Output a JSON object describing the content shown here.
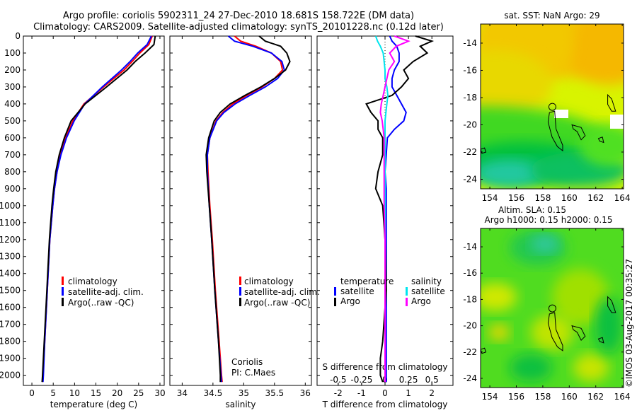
{
  "title_line1": "Argo profile: coriolis 5902311_24 27-Dec-2010 18.681S 158.722E (DM data)",
  "title_line2": "Climatology: CARS2009. Satellite-adjusted climatology: synTS_20101228.nc (0.12d later)",
  "copyright": "©IMOS 03-Aug-2017 00:35:27",
  "colors": {
    "climatology": "#ff0000",
    "satellite": "#0000ff",
    "argo": "#000000",
    "sal_satellite": "#00e5ee",
    "sal_argo": "#ff00ff"
  },
  "chart_data": [
    {
      "type": "line",
      "id": "temperature",
      "xlabel": "temperature (deg C)",
      "xlim": [
        -2,
        31
      ],
      "xticks": [
        0,
        5,
        10,
        15,
        20,
        25,
        30
      ],
      "ylim": [
        0,
        2060
      ],
      "yticks": [
        0,
        100,
        200,
        300,
        400,
        500,
        600,
        700,
        800,
        900,
        1000,
        1100,
        1200,
        1300,
        1400,
        1500,
        1600,
        1700,
        1800,
        1900,
        2000
      ],
      "legend": [
        "climatology",
        "satellite-adj. clim.",
        "Argo(..raw -QC)"
      ],
      "depth": [
        0,
        50,
        100,
        150,
        200,
        300,
        400,
        500,
        600,
        700,
        800,
        900,
        1000,
        1200,
        1400,
        1600,
        1800,
        2000,
        2040
      ],
      "series": [
        {
          "name": "climatology",
          "values": [
            28.2,
            27.4,
            25.3,
            23.5,
            21.6,
            16.8,
            12.2,
            9.6,
            7.9,
            6.7,
            5.9,
            5.3,
            4.9,
            4.2,
            3.8,
            3.4,
            3.0,
            2.6,
            2.5
          ]
        },
        {
          "name": "satellite-adj. clim.",
          "values": [
            28.0,
            27.0,
            24.8,
            23.0,
            21.0,
            16.5,
            12.4,
            9.9,
            8.1,
            6.8,
            5.9,
            5.3,
            4.9,
            4.2,
            3.8,
            3.4,
            3.0,
            2.7,
            2.6
          ]
        },
        {
          "name": "Argo(..raw -QC)",
          "values": [
            28.9,
            28.6,
            26.5,
            24.2,
            22.3,
            17.5,
            12.5,
            9.2,
            7.6,
            6.4,
            5.6,
            5.1,
            4.7,
            4.1,
            3.7,
            3.3,
            2.9,
            2.5,
            2.4
          ]
        }
      ]
    },
    {
      "type": "line",
      "id": "salinity",
      "xlabel": "salinity",
      "xlim": [
        33.8,
        36.1
      ],
      "xticks": [
        34,
        34.5,
        35,
        35.5,
        36
      ],
      "ylim": [
        0,
        2060
      ],
      "legend": [
        "climatology",
        "satellite-adj. clim.",
        "Argo(..raw -QC)"
      ],
      "annotation": [
        "Coriolis",
        "PI: C.Maes"
      ],
      "depth": [
        0,
        30,
        60,
        100,
        150,
        200,
        250,
        300,
        350,
        400,
        450,
        500,
        600,
        700,
        800,
        1000,
        1200,
        1500,
        1800,
        2000,
        2040
      ],
      "series": [
        {
          "name": "climatology",
          "values": [
            34.85,
            34.95,
            35.2,
            35.45,
            35.6,
            35.63,
            35.5,
            35.3,
            35.05,
            34.82,
            34.66,
            34.55,
            34.45,
            34.41,
            34.42,
            34.45,
            34.49,
            34.54,
            34.6,
            34.64,
            34.65
          ]
        },
        {
          "name": "satellite-adj. clim.",
          "values": [
            34.75,
            34.85,
            35.15,
            35.45,
            35.62,
            35.66,
            35.55,
            35.35,
            35.1,
            34.86,
            34.68,
            34.56,
            34.45,
            34.41,
            34.41,
            34.44,
            34.48,
            34.53,
            34.59,
            34.63,
            34.64
          ]
        },
        {
          "name": "Argo(..raw -QC)",
          "values": [
            35.25,
            35.35,
            35.6,
            35.7,
            35.75,
            35.68,
            35.5,
            35.28,
            35.02,
            34.78,
            34.62,
            34.52,
            34.43,
            34.39,
            34.4,
            34.44,
            34.48,
            34.53,
            34.59,
            34.62,
            34.62
          ]
        }
      ]
    },
    {
      "type": "line",
      "id": "difference",
      "xlabel": "T difference from climatology",
      "xlabel2": "S difference from climatology",
      "xlim": [
        -2.9,
        2.9
      ],
      "xticks": [
        -2,
        -1,
        0,
        1,
        2
      ],
      "xticks2": [
        -0.5,
        -0.25,
        0,
        0.25,
        0.5
      ],
      "xticks2_labels": [
        "-0.5",
        "-0.25",
        "0",
        "0.25",
        "0.5"
      ],
      "ylim": [
        0,
        2060
      ],
      "legend_temperature": {
        "title": "temperature",
        "items": [
          "satellite",
          "Argo"
        ]
      },
      "legend_salinity": {
        "title": "salinity",
        "items": [
          "satellite",
          "Argo"
        ]
      },
      "depth": [
        0,
        30,
        60,
        100,
        150,
        200,
        250,
        300,
        350,
        400,
        450,
        500,
        550,
        600,
        700,
        800,
        900,
        1000,
        1200,
        1500,
        1800,
        1900,
        2000,
        2040
      ],
      "series": [
        {
          "name": "temperature satellite",
          "values": [
            0.2,
            0.3,
            0.5,
            0.6,
            0.6,
            0.4,
            0.3,
            0.3,
            0.5,
            0.7,
            0.9,
            0.8,
            0.4,
            0.1,
            0.05,
            0.0,
            0.05,
            0.05,
            0.05,
            0.05,
            0.05,
            0.05,
            0.05,
            0.05
          ]
        },
        {
          "name": "temperature Argo",
          "values": [
            1.3,
            2.0,
            1.5,
            1.8,
            1.2,
            0.8,
            1.0,
            0.7,
            0.3,
            -0.8,
            -0.6,
            -0.3,
            -0.3,
            -0.1,
            -0.1,
            -0.3,
            -0.4,
            -0.1,
            0.0,
            0.05,
            -0.1,
            -0.2,
            -0.2,
            -0.1
          ]
        },
        {
          "name": "salinity satellite",
          "values": [
            -0.1,
            -0.08,
            -0.05,
            -0.02,
            -0.01,
            0.0,
            0.0,
            0.02,
            0.03,
            0.02,
            0.01,
            0.0,
            0.0,
            0.0,
            0.0,
            0.0,
            0.0,
            0.0,
            0.0,
            0.0,
            0.0,
            0.0,
            0.0,
            0.0
          ]
        },
        {
          "name": "salinity Argo",
          "values": [
            0.1,
            0.25,
            0.12,
            0.05,
            0.1,
            0.04,
            0.02,
            0.0,
            -0.02,
            -0.04,
            -0.05,
            -0.03,
            -0.02,
            -0.01,
            -0.01,
            -0.01,
            -0.01,
            -0.01,
            0.0,
            0.0,
            0.0,
            0.0,
            0.0,
            0.0
          ]
        }
      ]
    },
    {
      "type": "heatmap",
      "id": "sst_map",
      "title": "sat. SST: NaN Argo: 29",
      "xlim": [
        153.3,
        164.1
      ],
      "ylim": [
        -24.7,
        -12.6
      ],
      "xticks": [
        154,
        156,
        158,
        160,
        162,
        164
      ],
      "yticks": [
        -14,
        -16,
        -18,
        -20,
        -22,
        -24
      ],
      "argo_position": {
        "lon": 158.722,
        "lat": -18.681
      }
    },
    {
      "type": "heatmap",
      "id": "sla_map",
      "title": "Altim. SLA: 0.15",
      "subtitle": "Argo h1000: 0.15 h2000: 0.15",
      "xlim": [
        153.3,
        164.1
      ],
      "ylim": [
        -24.7,
        -12.6
      ],
      "xticks": [
        154,
        156,
        158,
        160,
        162,
        164
      ],
      "yticks": [
        -14,
        -16,
        -18,
        -20,
        -22,
        -24
      ],
      "argo_position": {
        "lon": 158.722,
        "lat": -18.681
      }
    }
  ]
}
